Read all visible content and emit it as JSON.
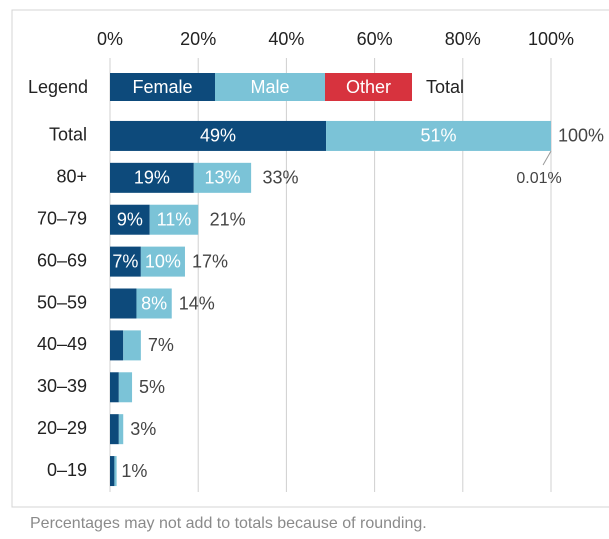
{
  "chart_data": {
    "type": "stacked-bar-horizontal",
    "legend_title": "Legend",
    "categories": [
      "Total",
      "80+",
      "70–79",
      "60–69",
      "50–59",
      "40–49",
      "30–39",
      "20–29",
      "0–19"
    ],
    "series": [
      {
        "name": "Female",
        "color": "#0d4a7b",
        "values": [
          49,
          19,
          9,
          7,
          6,
          3,
          2,
          2,
          1
        ],
        "value_labels": [
          "49%",
          "19%",
          "9%",
          "7%",
          null,
          null,
          null,
          null,
          null
        ]
      },
      {
        "name": "Male",
        "color": "#7bc3d7",
        "values": [
          51,
          13,
          11,
          10,
          8,
          4,
          3,
          1,
          0.5
        ],
        "value_labels": [
          "51%",
          "13%",
          "11%",
          "10%",
          "8%",
          null,
          null,
          null,
          null
        ]
      },
      {
        "name": "Other",
        "color": "#d7333e",
        "values": [
          0.01,
          0,
          0,
          0,
          0,
          0,
          0,
          0,
          0
        ],
        "value_labels": [
          "0.01%",
          null,
          null,
          null,
          null,
          null,
          null,
          null,
          null
        ]
      }
    ],
    "totals": {
      "name": "Total",
      "values": [
        100,
        33,
        21,
        17,
        14,
        7,
        5,
        3,
        1
      ],
      "value_labels": [
        "100%",
        "33%",
        "21%",
        "17%",
        "14%",
        "7%",
        "5%",
        "3%",
        "1%"
      ]
    },
    "xlim": [
      0,
      100
    ],
    "xticks": [
      {
        "value": 0,
        "label": "0%"
      },
      {
        "value": 20,
        "label": "20%"
      },
      {
        "value": 40,
        "label": "40%"
      },
      {
        "value": 60,
        "label": "60%"
      },
      {
        "value": 80,
        "label": "80%"
      },
      {
        "value": 100,
        "label": "100%"
      }
    ],
    "grid": true,
    "note": "Percentages may not add to totals because of rounding."
  }
}
